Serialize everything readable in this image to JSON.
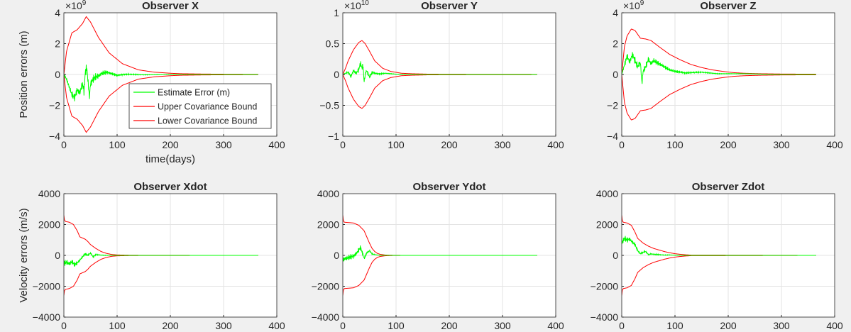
{
  "chart_data": [
    {
      "type": "line",
      "title": "Observer X",
      "ylabel": "Position errors (m)",
      "xlabel": "time(days)",
      "exponent_label": "10",
      "exponent_power": "9",
      "xlim": [
        0,
        400
      ],
      "ylim": [
        -4,
        4
      ],
      "xticks": [
        0,
        100,
        200,
        300,
        400
      ],
      "yticks": [
        -4,
        -2,
        0,
        2,
        4
      ],
      "grid": true,
      "legend": {
        "placement": "lower-right",
        "entries": [
          "Estimate Error (m)",
          "Upper Covariance Bound",
          "Lower Covariance Bound"
        ]
      },
      "envelope": {
        "x": [
          0,
          5,
          15,
          25,
          35,
          42,
          50,
          65,
          85,
          110,
          140,
          170,
          200,
          220,
          260,
          300,
          365
        ],
        "y": [
          0,
          1.5,
          2.7,
          2.9,
          3.3,
          3.75,
          3.4,
          2.4,
          1.4,
          0.7,
          0.3,
          0.15,
          0.08,
          0.05,
          0.03,
          0.02,
          0.01
        ]
      },
      "estimate": {
        "x": [
          0,
          5,
          10,
          15,
          20,
          25,
          30,
          35,
          38,
          40,
          43,
          45,
          48,
          50,
          55,
          60,
          65,
          70,
          80,
          90,
          100,
          120,
          150,
          200,
          250,
          365
        ],
        "y": [
          0,
          -0.3,
          -0.8,
          -1.3,
          -1.5,
          -1.0,
          -1.2,
          -0.6,
          -1.1,
          0.1,
          0.45,
          -0.3,
          -1.5,
          -0.6,
          -0.3,
          -0.15,
          -0.1,
          0.05,
          0.15,
          0.05,
          -0.05,
          0.02,
          -0.02,
          0.01,
          0,
          0
        ]
      }
    },
    {
      "type": "line",
      "title": "Observer Y",
      "ylabel": "",
      "xlabel": "",
      "exponent_label": "10",
      "exponent_power": "10",
      "xlim": [
        0,
        400
      ],
      "ylim": [
        -1,
        1
      ],
      "xticks": [
        0,
        100,
        200,
        300,
        400
      ],
      "yticks": [
        -1,
        -0.5,
        0,
        0.5,
        1
      ],
      "grid": true,
      "envelope": {
        "x": [
          0,
          5,
          10,
          20,
          30,
          36,
          42,
          50,
          60,
          75,
          90,
          110,
          130,
          160,
          200,
          365
        ],
        "y": [
          0,
          0.1,
          0.22,
          0.4,
          0.52,
          0.55,
          0.5,
          0.38,
          0.22,
          0.1,
          0.05,
          0.02,
          0.012,
          0.006,
          0.004,
          0.002
        ]
      },
      "estimate": {
        "x": [
          0,
          5,
          10,
          15,
          20,
          25,
          30,
          33,
          36,
          38,
          40,
          43,
          45,
          50,
          55,
          60,
          70,
          80,
          100,
          130,
          160,
          365
        ],
        "y": [
          0,
          0.02,
          0.04,
          -0.03,
          0.06,
          0.02,
          0.08,
          0.18,
          0.1,
          0.15,
          -0.12,
          0.04,
          0.06,
          -0.04,
          0.03,
          0.02,
          0.01,
          0.02,
          0.005,
          0.003,
          0,
          0
        ]
      }
    },
    {
      "type": "line",
      "title": "Observer Z",
      "ylabel": "",
      "xlabel": "",
      "exponent_label": "10",
      "exponent_power": "9",
      "xlim": [
        0,
        400
      ],
      "ylim": [
        -4,
        4
      ],
      "xticks": [
        0,
        100,
        200,
        300,
        400
      ],
      "yticks": [
        -4,
        -2,
        0,
        2,
        4
      ],
      "grid": true,
      "envelope": {
        "x": [
          0,
          5,
          10,
          18,
          25,
          35,
          45,
          55,
          70,
          90,
          110,
          130,
          150,
          170,
          190,
          210,
          230,
          260,
          300,
          365
        ],
        "y": [
          0,
          1.8,
          2.5,
          2.95,
          2.85,
          2.35,
          2.3,
          2.2,
          1.8,
          1.3,
          0.95,
          0.65,
          0.45,
          0.3,
          0.2,
          0.12,
          0.08,
          0.05,
          0.03,
          0.02
        ]
      },
      "estimate": {
        "x": [
          0,
          5,
          10,
          15,
          20,
          25,
          30,
          35,
          38,
          40,
          45,
          50,
          55,
          60,
          70,
          80,
          90,
          100,
          120,
          150,
          180,
          230,
          300,
          365
        ],
        "y": [
          0,
          0.6,
          1.2,
          0.8,
          1.3,
          0.9,
          0.5,
          0.8,
          -0.6,
          0.2,
          0.5,
          1.0,
          0.7,
          0.9,
          0.7,
          0.5,
          0.3,
          0.2,
          0.1,
          0.15,
          0.05,
          0.05,
          0,
          0
        ]
      }
    },
    {
      "type": "line",
      "title": "Observer Xdot",
      "ylabel": "Velocity errors (m/s)",
      "xlabel": "",
      "xlim": [
        0,
        400
      ],
      "ylim": [
        -4000,
        4000
      ],
      "xticks": [
        0,
        100,
        200,
        300,
        400
      ],
      "yticks": [
        -4000,
        -2000,
        0,
        2000,
        4000
      ],
      "grid": true,
      "envelope": {
        "x": [
          0,
          1,
          3,
          10,
          18,
          25,
          30,
          40,
          45,
          50,
          60,
          70,
          80,
          90,
          100,
          120,
          150,
          365
        ],
        "y": [
          2600,
          2300,
          2200,
          2150,
          2000,
          1600,
          1200,
          1050,
          900,
          700,
          450,
          250,
          130,
          60,
          30,
          15,
          5,
          0
        ]
      },
      "estimate": {
        "x": [
          0,
          5,
          10,
          15,
          20,
          25,
          30,
          35,
          40,
          45,
          50,
          55,
          60,
          70,
          80,
          90,
          100,
          120,
          150,
          365
        ],
        "y": [
          -500,
          -450,
          -550,
          -400,
          -600,
          -500,
          -300,
          -100,
          100,
          0,
          150,
          -100,
          50,
          20,
          0,
          10,
          0,
          0,
          0,
          0
        ]
      }
    },
    {
      "type": "line",
      "title": "Observer Ydot",
      "ylabel": "",
      "xlabel": "",
      "xlim": [
        0,
        400
      ],
      "ylim": [
        -4000,
        4000
      ],
      "xticks": [
        0,
        100,
        200,
        300,
        400
      ],
      "yticks": [
        -4000,
        -2000,
        0,
        2000,
        4000
      ],
      "grid": true,
      "envelope": {
        "x": [
          0,
          1,
          3,
          10,
          20,
          30,
          40,
          45,
          50,
          55,
          60,
          65,
          70,
          80,
          90,
          100,
          120,
          365
        ],
        "y": [
          2600,
          2250,
          2150,
          2130,
          2100,
          1950,
          1600,
          1200,
          800,
          450,
          250,
          130,
          70,
          25,
          10,
          5,
          0,
          0
        ]
      },
      "estimate": {
        "x": [
          0,
          5,
          10,
          15,
          20,
          25,
          30,
          33,
          36,
          40,
          45,
          50,
          55,
          60,
          70,
          80,
          100,
          120,
          365
        ],
        "y": [
          -300,
          -200,
          -150,
          -100,
          -50,
          100,
          350,
          500,
          250,
          -200,
          150,
          300,
          100,
          50,
          0,
          10,
          0,
          0,
          0
        ]
      }
    },
    {
      "type": "line",
      "title": "Observer Zdot",
      "ylabel": "",
      "xlabel": "",
      "xlim": [
        0,
        400
      ],
      "ylim": [
        -4000,
        4000
      ],
      "xticks": [
        0,
        100,
        200,
        300,
        400
      ],
      "yticks": [
        -4000,
        -2000,
        0,
        2000,
        4000
      ],
      "grid": true,
      "envelope": {
        "x": [
          0,
          1,
          3,
          10,
          18,
          25,
          30,
          40,
          50,
          60,
          70,
          80,
          90,
          100,
          110,
          120,
          130,
          365
        ],
        "y": [
          2600,
          2250,
          2150,
          2100,
          1950,
          1500,
          1100,
          800,
          600,
          450,
          350,
          250,
          170,
          110,
          70,
          40,
          20,
          0
        ]
      },
      "estimate": {
        "x": [
          0,
          5,
          10,
          15,
          20,
          25,
          30,
          35,
          40,
          45,
          50,
          55,
          60,
          70,
          80,
          90,
          100,
          120,
          365
        ],
        "y": [
          800,
          1100,
          1000,
          1050,
          850,
          700,
          300,
          100,
          200,
          250,
          50,
          100,
          70,
          50,
          20,
          30,
          10,
          0,
          0
        ]
      }
    }
  ]
}
